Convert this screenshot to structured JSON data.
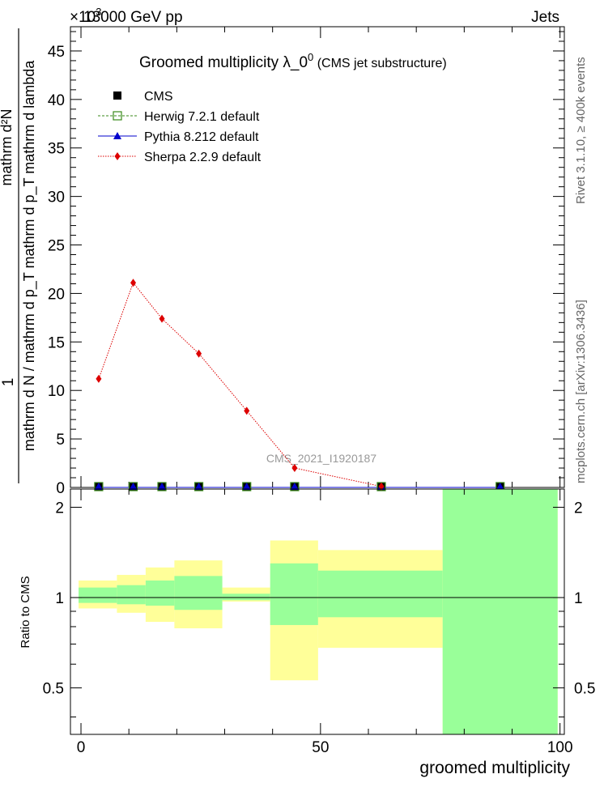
{
  "header": {
    "beam": "13000 GeV pp",
    "process": "Jets",
    "exponent_label": "×10",
    "exponent_power": "3"
  },
  "side_labels": {
    "rivet": "Rivet 3.1.10, ≥ 400k events",
    "mcplots": "mcplots.cern.ch [arXiv:1306.3436]"
  },
  "chart_data": [
    {
      "type": "line",
      "title": "Groomed multiplicity  λ_0⁰ (CMS jet substructure)",
      "watermark": "CMS_2021_I1920187",
      "ylabel_numerator": "1",
      "ylabel_denominator": "mathrm d N / mathrm d p_T mathrm d p_T mathrm d lambda",
      "ylabel_top": "mathrm d²N",
      "ylim": [
        0,
        47.5
      ],
      "xlim": [
        -2.2,
        100.9
      ],
      "yticks": [
        0,
        5,
        10,
        15,
        20,
        25,
        30,
        35,
        40,
        45
      ],
      "legend": [
        "CMS",
        "Herwig 7.2.1 default",
        "Pythia 8.212 default",
        "Sherpa 2.2.9 default"
      ],
      "series": [
        {
          "name": "CMS",
          "color": "#000000",
          "marker": "square-filled",
          "x": [
            3.7,
            10.9,
            16.9,
            24.6,
            34.6,
            44.6,
            62.7,
            87.5
          ],
          "values": [
            0,
            0,
            0,
            0,
            0,
            0,
            0,
            0
          ]
        },
        {
          "name": "Herwig 7.2.1 default",
          "color": "#3a8a1a",
          "marker": "square-open",
          "x": [
            3.7,
            10.9,
            16.9,
            24.6,
            34.6,
            44.6,
            62.7,
            87.5
          ],
          "values": [
            0,
            0,
            0,
            0,
            0,
            0,
            0,
            0
          ]
        },
        {
          "name": "Pythia 8.212 default",
          "color": "#0000cc",
          "marker": "triangle",
          "x": [
            3.7,
            10.9,
            16.9,
            24.6,
            34.6,
            44.6,
            62.7,
            87.5
          ],
          "values": [
            0,
            0,
            0,
            0,
            0,
            0,
            0,
            0
          ]
        },
        {
          "name": "Sherpa 2.2.9 default",
          "color": "#dd0000",
          "marker": "diamond",
          "x": [
            3.7,
            10.9,
            16.9,
            24.6,
            34.6,
            44.6,
            62.7
          ],
          "values": [
            11.2,
            21.1,
            17.4,
            13.8,
            7.9,
            2.0,
            0.1
          ]
        }
      ]
    },
    {
      "type": "area",
      "ylabel": "Ratio to CMS",
      "xlabel": "groomed multiplicity",
      "xlim": [
        -2.2,
        100.9
      ],
      "ylim": [
        0.35,
        2.3
      ],
      "xticks": [
        0,
        50,
        100
      ],
      "yticks": [
        0.5,
        1,
        2
      ],
      "reference_line": 1,
      "bins": [
        {
          "lo": -0.5,
          "hi": 7.5,
          "inner": [
            0.96,
            1.08
          ],
          "outer": [
            0.92,
            1.14
          ]
        },
        {
          "lo": 7.5,
          "hi": 13.5,
          "inner": [
            0.95,
            1.1
          ],
          "outer": [
            0.89,
            1.19
          ]
        },
        {
          "lo": 13.5,
          "hi": 19.5,
          "inner": [
            0.94,
            1.14
          ],
          "outer": [
            0.83,
            1.26
          ]
        },
        {
          "lo": 19.5,
          "hi": 29.5,
          "inner": [
            0.91,
            1.18
          ],
          "outer": [
            0.79,
            1.33
          ]
        },
        {
          "lo": 29.5,
          "hi": 39.5,
          "inner": [
            0.98,
            1.03
          ],
          "outer": [
            0.97,
            1.08
          ]
        },
        {
          "lo": 39.5,
          "hi": 49.5,
          "inner": [
            0.81,
            1.3
          ],
          "outer": [
            0.53,
            1.55
          ]
        },
        {
          "lo": 49.5,
          "hi": 75.5,
          "inner": [
            0.86,
            1.23
          ],
          "outer": [
            0.68,
            1.44
          ]
        },
        {
          "lo": 75.5,
          "hi": 99.5,
          "inner": [
            0.35,
            2.3
          ],
          "outer": [
            0.35,
            2.3
          ]
        }
      ]
    }
  ]
}
